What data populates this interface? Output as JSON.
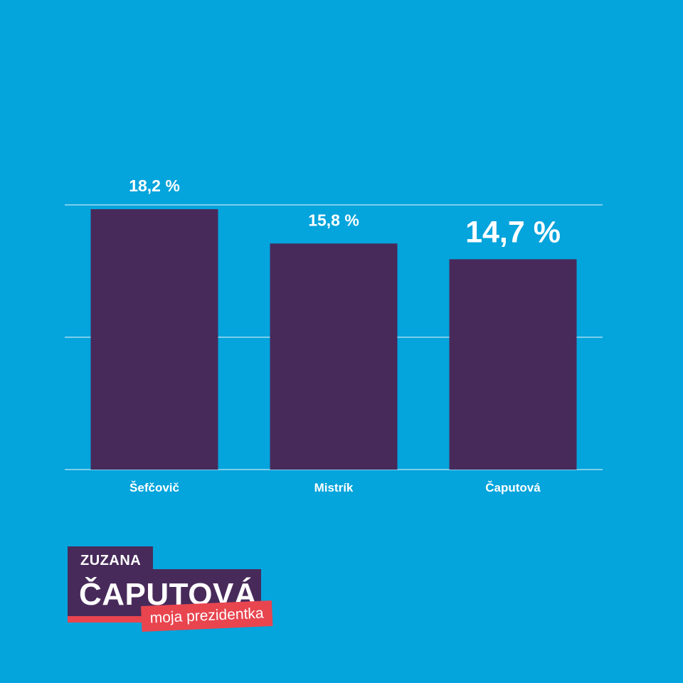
{
  "chart_data": {
    "type": "bar",
    "categories": [
      "Šefčovič",
      "Mistrík",
      "Čaputová"
    ],
    "values": [
      18.2,
      15.8,
      14.7
    ],
    "value_labels": [
      "18,2 %",
      "15,8 %",
      "14,7 %"
    ],
    "highlight_index": 2,
    "ylim": [
      0,
      18.5
    ],
    "gridlines": [
      0,
      9.25,
      18.5
    ],
    "colors": {
      "bar": "#482a5a",
      "background": "#04a4dc",
      "grid": "#ffffff",
      "text": "#ffffff"
    }
  },
  "logo": {
    "first_name": "ZUZANA",
    "last_name": "ČAPUTOVÁ",
    "tagline": "moja prezidentka",
    "colors": {
      "primary": "#482a5a",
      "accent": "#e8454f"
    }
  }
}
